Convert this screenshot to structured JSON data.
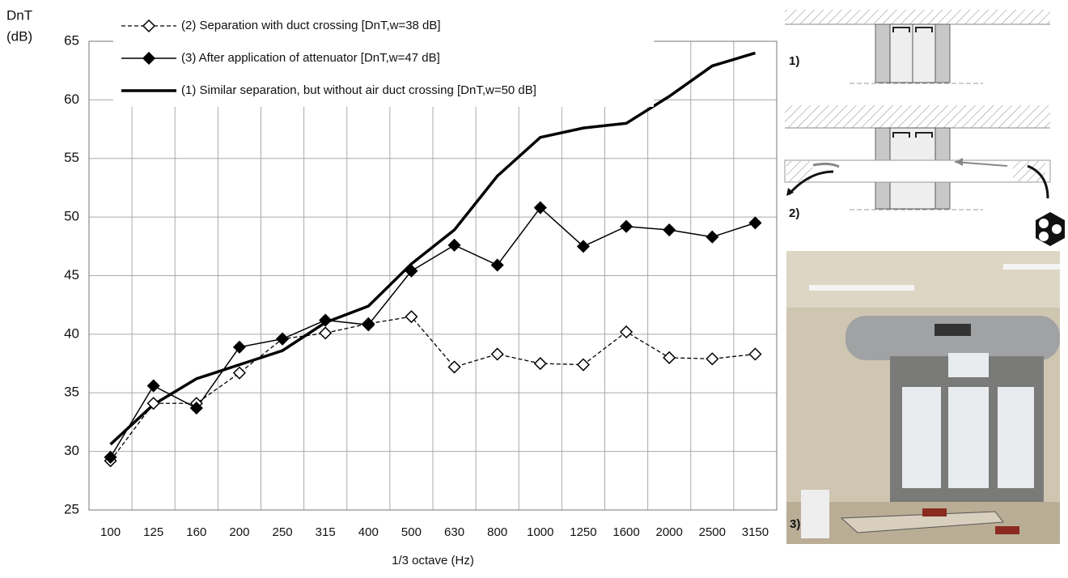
{
  "chart_data": {
    "type": "line",
    "ylabel": [
      "DnT",
      "(dB)"
    ],
    "xlabel": "1/3 octave (Hz)",
    "categories": [
      "100",
      "125",
      "160",
      "200",
      "250",
      "315",
      "400",
      "500",
      "630",
      "800",
      "1000",
      "1250",
      "1600",
      "2000",
      "2500",
      "3150"
    ],
    "series": [
      {
        "name": "(2) Separation  with duct crossing [DnT,w=38 dB]",
        "color": "#000000",
        "dash": true,
        "width": 1.3,
        "marker": "diamond-open",
        "values": [
          29.2,
          34.1,
          34.1,
          36.7,
          39.6,
          40.1,
          40.9,
          41.5,
          37.2,
          38.3,
          37.5,
          37.4,
          40.2,
          38.0,
          37.9,
          38.3
        ]
      },
      {
        "name": "(3) After application  of attenuator [DnT,w=47 dB]",
        "color": "#000000",
        "dash": false,
        "width": 1.5,
        "marker": "diamond-filled",
        "values": [
          29.5,
          35.6,
          33.7,
          38.9,
          39.6,
          41.2,
          40.8,
          45.4,
          47.6,
          45.9,
          50.8,
          47.5,
          49.2,
          48.9,
          48.3,
          49.5
        ]
      },
      {
        "name": "(1) Similar separation,  but without  air duct crossing [DnT,w=50 dB]",
        "color": "#000000",
        "dash": false,
        "width": 3.5,
        "marker": null,
        "values": [
          30.6,
          34.0,
          36.2,
          37.4,
          38.6,
          41.0,
          42.4,
          46.0,
          48.9,
          53.5,
          56.8,
          57.6,
          58.0,
          60.3,
          62.9,
          64.0
        ]
      }
    ],
    "ylim": [
      25,
      65
    ],
    "yticks": [
      25,
      30,
      35,
      40,
      45,
      50,
      55,
      60,
      65
    ],
    "grid": true
  },
  "figure_labels": [
    "1)",
    "2)",
    "3)"
  ]
}
